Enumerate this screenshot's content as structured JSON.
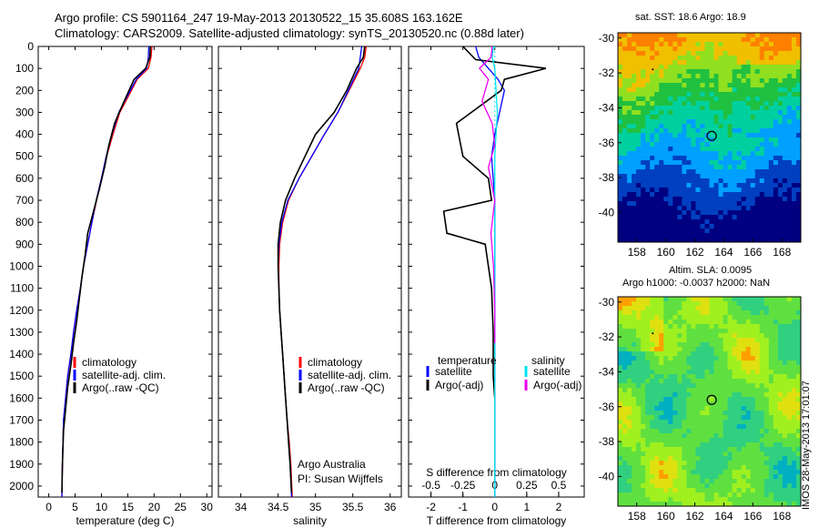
{
  "title_line1": "Argo profile: CS 5901164_247 19-May-2013 20130522_15 35.608S 163.162E",
  "title_line2": "Climatology: CARS2009. Satellite-adjusted climatology: synTS_20130520.nc (0.88d later)",
  "credit_line1": "Argo Australia",
  "credit_line2": "PI: Susan Wijffels",
  "stamp": "IMOS 28-May-2013 17:01:07",
  "chart_data": [
    {
      "type": "line",
      "xlabel": "temperature (deg C)",
      "xlim": [
        -2,
        31
      ],
      "ylim": [
        2050,
        0
      ],
      "xticks": [
        0,
        5,
        10,
        15,
        20,
        25,
        30
      ],
      "yticks": [
        0,
        100,
        200,
        300,
        400,
        500,
        600,
        700,
        800,
        900,
        1000,
        1100,
        1200,
        1300,
        1400,
        1500,
        1600,
        1700,
        1800,
        1900,
        2000
      ],
      "legend": [
        "climatology",
        "satellite-adj. clim.",
        "Argo(..raw -QC)"
      ],
      "series": [
        {
          "name": "climatology",
          "color": "#ff0000",
          "x": [
            19.6,
            19.4,
            18.9,
            16.8,
            14.6,
            13.5,
            12.2,
            11.0,
            10.0,
            9.1,
            8.2,
            7.4,
            6.6,
            6.0,
            5.3,
            4.7,
            4.2,
            3.6,
            3.2,
            2.8,
            2.6,
            2.5
          ],
          "y": [
            0,
            50,
            100,
            150,
            250,
            300,
            400,
            500,
            600,
            700,
            800,
            900,
            1000,
            1100,
            1200,
            1300,
            1400,
            1500,
            1600,
            1700,
            1900,
            2050
          ]
        },
        {
          "name": "satellite-adj. clim.",
          "color": "#0000ff",
          "x": [
            19.0,
            18.9,
            18.6,
            16.6,
            14.4,
            13.3,
            12.0,
            10.9,
            10.0,
            9.0,
            8.2,
            7.4,
            6.6,
            6.0,
            5.3,
            4.7,
            4.2,
            3.6,
            3.2,
            2.8,
            2.6,
            2.5
          ],
          "y": [
            0,
            50,
            100,
            150,
            250,
            300,
            400,
            500,
            600,
            700,
            800,
            900,
            1000,
            1100,
            1200,
            1300,
            1400,
            1500,
            1600,
            1700,
            1900,
            2050
          ]
        },
        {
          "name": "Argo(..raw -QC)",
          "color": "#000000",
          "x": [
            19.3,
            19.2,
            18.4,
            16.2,
            14.3,
            12.5,
            11.4,
            10.6,
            9.6,
            8.5,
            7.4,
            6.9,
            6.3,
            5.8,
            5.3,
            4.7,
            4.2,
            3.6,
            3.2,
            2.8,
            2.6,
            2.5
          ],
          "y": [
            0,
            50,
            100,
            150,
            250,
            350,
            450,
            550,
            650,
            750,
            850,
            950,
            1050,
            1150,
            1250,
            1350,
            1450,
            1550,
            1650,
            1750,
            1900,
            2030
          ]
        }
      ]
    },
    {
      "type": "line",
      "xlabel": "salinity",
      "xlim": [
        33.7,
        36.15
      ],
      "ylim": [
        2050,
        0
      ],
      "xticks": [
        34,
        34.5,
        35,
        35.5,
        36
      ],
      "legend": [
        "climatology",
        "satellite-adj. clim.",
        "Argo(..raw -QC)"
      ],
      "series": [
        {
          "name": "climatology",
          "color": "#ff0000",
          "x": [
            35.68,
            35.66,
            35.6,
            35.45,
            35.3,
            35.12,
            34.95,
            34.78,
            34.64,
            34.56,
            34.52,
            34.51,
            34.51,
            34.52,
            34.54,
            34.56,
            34.58,
            34.6,
            34.62,
            34.65,
            34.67,
            34.69
          ],
          "y": [
            0,
            50,
            100,
            200,
            300,
            400,
            500,
            600,
            700,
            800,
            900,
            1000,
            1100,
            1200,
            1300,
            1400,
            1500,
            1600,
            1700,
            1800,
            1900,
            2050
          ]
        },
        {
          "name": "satellite-adj. clim.",
          "color": "#0000ff",
          "x": [
            35.62,
            35.6,
            35.58,
            35.44,
            35.3,
            35.12,
            34.95,
            34.78,
            34.63,
            34.55,
            34.51,
            34.5,
            34.51,
            34.52,
            34.54,
            34.56,
            34.58,
            34.6,
            34.62,
            34.64,
            34.66,
            34.68
          ],
          "y": [
            0,
            50,
            100,
            200,
            300,
            400,
            500,
            600,
            700,
            800,
            900,
            1000,
            1100,
            1200,
            1300,
            1400,
            1500,
            1600,
            1700,
            1800,
            1900,
            2050
          ]
        },
        {
          "name": "Argo(..raw -QC)",
          "color": "#000000",
          "x": [
            35.66,
            35.64,
            35.55,
            35.42,
            35.25,
            35.0,
            34.86,
            34.72,
            34.6,
            34.53,
            34.5,
            34.5,
            34.51,
            34.52,
            34.54,
            34.56,
            34.58,
            34.6,
            34.62,
            34.64,
            34.66,
            34.68
          ],
          "y": [
            0,
            50,
            100,
            200,
            300,
            400,
            500,
            600,
            700,
            800,
            900,
            1000,
            1100,
            1200,
            1300,
            1400,
            1500,
            1600,
            1700,
            1800,
            1900,
            2030
          ]
        }
      ]
    },
    {
      "type": "line",
      "xlabel": "T difference from climatology",
      "xlabel_top": "S difference from climatology",
      "xlim": [
        -2.7,
        2.8
      ],
      "ylim": [
        2050,
        0
      ],
      "xticks": [
        -2,
        -1,
        0,
        1,
        2
      ],
      "xticks_top": [
        -0.5,
        -0.25,
        0,
        0.25,
        0.5
      ],
      "legend_headers": [
        "temperature",
        "salinity"
      ],
      "legend": [
        "satellite",
        "Argo(-adj)",
        "satellite",
        "Argo(-adj)"
      ],
      "series": [
        {
          "name": "satellite",
          "group": "temperature",
          "color": "#0000ff",
          "x": [
            -0.6,
            -0.5,
            -0.2,
            0.1,
            0.3,
            0.15,
            0.0,
            -0.1,
            0.0,
            0.0,
            0.0,
            0.0,
            0.0,
            0.0,
            0.0
          ],
          "y": [
            0,
            50,
            100,
            150,
            200,
            300,
            400,
            500,
            700,
            900,
            1100,
            1300,
            1500,
            1800,
            2050
          ]
        },
        {
          "name": "Argo(-adj)",
          "group": "temperature",
          "color": "#000000",
          "x": [
            -1.0,
            -0.6,
            1.6,
            0.3,
            0.2,
            -1.2,
            -1.0,
            -0.2,
            -0.1,
            -1.6,
            -1.5,
            -0.3,
            -0.2,
            -0.1,
            -0.05,
            -0.05,
            0.0
          ],
          "y": [
            0,
            60,
            100,
            150,
            200,
            350,
            500,
            600,
            700,
            750,
            850,
            900,
            1000,
            1100,
            1300,
            1500,
            1600
          ]
        },
        {
          "name": "satellite",
          "group": "salinity",
          "color": "#00e5ee",
          "x": [
            -0.01,
            -0.02,
            0.0,
            0.01,
            0.02,
            0.01,
            0.0,
            0.0,
            0.0,
            0.0,
            0.0,
            0.0,
            0.0,
            0.0
          ],
          "y": [
            0,
            50,
            100,
            200,
            300,
            400,
            500,
            600,
            800,
            1000,
            1200,
            1500,
            1800,
            2050
          ]
        },
        {
          "name": "Argo(-adj)",
          "group": "salinity",
          "color": "#ee00ee",
          "x": [
            -0.02,
            -0.03,
            -0.12,
            -0.05,
            -0.1,
            -0.02,
            0.0,
            -0.05,
            0.0,
            -0.03,
            -0.01,
            0.0,
            0.0
          ],
          "y": [
            0,
            50,
            100,
            150,
            250,
            350,
            450,
            550,
            700,
            850,
            1000,
            1200,
            1350
          ]
        }
      ]
    },
    {
      "type": "heatmap",
      "title": "sat. SST: 18.6 Argo: 18.9",
      "xticks": [
        158,
        160,
        162,
        164,
        166,
        168
      ],
      "yticks": [
        -30,
        -32,
        -34,
        -36,
        -38,
        -40
      ],
      "xlim": [
        156.7,
        169.3
      ],
      "ylim": [
        -41.7,
        -29.7
      ],
      "marker": {
        "lon": 163.162,
        "lat": -35.608
      }
    },
    {
      "type": "heatmap",
      "title_line1": "Altim. SLA: 0.0095",
      "title_line2": "Argo h1000: -0.0037 h2000: NaN",
      "xticks": [
        158,
        160,
        162,
        164,
        166,
        168
      ],
      "yticks": [
        -30,
        -32,
        -34,
        -36,
        -38,
        -40
      ],
      "xlim": [
        156.7,
        169.3
      ],
      "ylim": [
        -41.7,
        -29.7
      ],
      "marker": {
        "lon": 163.162,
        "lat": -35.608
      }
    }
  ]
}
